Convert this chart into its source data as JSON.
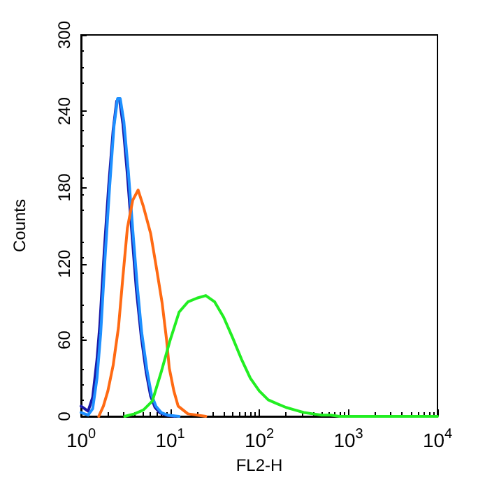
{
  "chart_data": {
    "type": "line",
    "xlabel": "FL2-H",
    "ylabel": "Counts",
    "log": "x",
    "marker": "none",
    "line_style": "solid",
    "grid": false,
    "xlim": [
      1,
      10000
    ],
    "xticks": [
      {
        "value": 1,
        "label": "10$^{0}$"
      },
      {
        "value": 10,
        "label": "10$^{1}$"
      },
      {
        "value": 100,
        "label": "10$^{2}$"
      },
      {
        "value": 1000,
        "label": "10$^{3}$"
      },
      {
        "value": 10000,
        "label": "10$^{4}$"
      }
    ],
    "ylim": [
      0,
      300
    ],
    "yticks": [
      0,
      60,
      120,
      180,
      240,
      300
    ],
    "series": [
      {
        "color": "#1a1aa8",
        "x": [
          1,
          1.2,
          1.35,
          1.51,
          1.62,
          1.82,
          2.04,
          2.29,
          2.51,
          2.69,
          2.95,
          3.31,
          3.72,
          4.17,
          4.73,
          5.37,
          6.03,
          6.76,
          7.59,
          8.91,
          11.2
        ],
        "values": [
          8,
          4,
          15,
          45,
          71,
          130,
          181,
          225,
          248,
          250,
          230,
          190,
          144,
          100,
          63,
          35,
          16,
          7,
          3,
          1,
          0
        ]
      },
      {
        "color": "#1e90ff",
        "x": [
          1,
          1.2,
          1.35,
          1.51,
          1.66,
          1.86,
          2.09,
          2.34,
          2.57,
          2.75,
          3.02,
          3.39,
          3.8,
          4.27,
          4.79,
          5.5,
          6.17,
          6.92,
          7.94,
          9.33,
          12.6
        ],
        "values": [
          3,
          1,
          6,
          30,
          65,
          125,
          180,
          228,
          250,
          250,
          232,
          193,
          147,
          103,
          66,
          36,
          17,
          8,
          3,
          1,
          0
        ]
      },
      {
        "color": "#ff6a13",
        "x": [
          1.58,
          1.78,
          2,
          2.29,
          2.63,
          2.95,
          3.31,
          3.8,
          4.37,
          5.01,
          6.03,
          7.08,
          8.13,
          9.12,
          9.77,
          11,
          12.3,
          15.8,
          25.1
        ],
        "values": [
          0,
          8,
          20,
          40,
          70,
          110,
          148,
          170,
          178,
          165,
          144,
          115,
          89,
          60,
          38,
          20,
          8,
          2,
          0
        ]
      },
      {
        "color": "#22ee22",
        "x": [
          3.09,
          3.98,
          5.01,
          6.31,
          7.94,
          10,
          12.6,
          15.8,
          20,
          25.1,
          31.6,
          39.8,
          50.1,
          63.1,
          79.4,
          100,
          126,
          158,
          200,
          251,
          316,
          398,
          501,
          631,
          794,
          10000
        ],
        "values": [
          0,
          2,
          5,
          12,
          35,
          60,
          82,
          90,
          93,
          95,
          90,
          78,
          62,
          45,
          30,
          20,
          13,
          10,
          7,
          5,
          3,
          2,
          1,
          1,
          0,
          0
        ]
      }
    ]
  }
}
